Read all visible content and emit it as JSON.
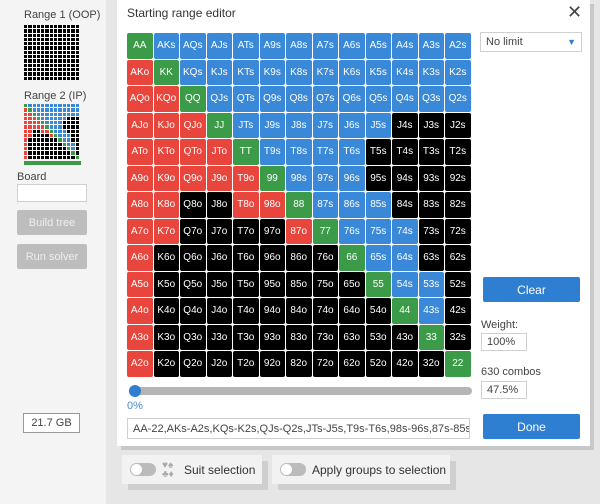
{
  "colors": {
    "g": "#3b9b48",
    "b": "#3a88d8",
    "r": "#e8463d",
    "k": "#000000"
  },
  "sidebar": {
    "range1_label": "Range 1 (OOP)",
    "range2_label": "Range 2 (IP)",
    "board_label": "Board",
    "board_value": "",
    "build_tree": "Build tree",
    "run_solver": "Run solver",
    "memory": "21.7 GB"
  },
  "dialog": {
    "title": "Starting range editor",
    "close_icon": "close-icon",
    "limit_select": "No limit",
    "clear": "Clear",
    "weight_label": "Weight:",
    "weight_value": "100%",
    "combos_label": "630 combos",
    "combos_percent": "47.5%",
    "slider_value": "0%",
    "slider_fraction": 0,
    "range_text": "AA-22,AKs-A2s,KQs-K2s,QJs-Q2s,JTs-J5s,T9s-T6s,98s-96s,87s-85s,7",
    "done": "Done"
  },
  "bottom": {
    "suit_selection": "Suit selection",
    "apply_groups": "Apply groups to selection"
  },
  "grid": {
    "states": [
      "gbbbbbbbbbbbb",
      "rgbbbbbbbbbbb",
      "rrgbbbbbbbbbb",
      "rrrgbbbbbbkkk",
      "rrrrgbbbbkkkk",
      "rrrrrgbbbkkkk",
      "rrkkrrgbbbkkk",
      "rrkkkkrgbbbkk",
      "rkkkkkkkgbbkk",
      "rkkkkkkkkgbbk",
      "rkkkkkkkkkgbk",
      "rkkkkkkkkkkgk",
      "rkkkkkkkkkkkg"
    ],
    "range1_states": [
      "kkkkkkkkkkkkk",
      "kkkkkkkkkkkkk",
      "kkkkkkkkkkkkk",
      "kkkkkkkkkkkkk",
      "kkkkkkkkkkkkk",
      "kkkkkkkkkkkkk",
      "kkkkkkkkkkkkk",
      "kkkkkkkkkkkkk",
      "kkkkkkkkkkkkk",
      "kkkkkkkkkkkkk",
      "kkkkkkkkkkkkk",
      "kkkkkkkkkkkkk",
      "kkkkkkkkkkkkk"
    ],
    "rows": [
      [
        "AA",
        "AKs",
        "AQs",
        "AJs",
        "ATs",
        "A9s",
        "A8s",
        "A7s",
        "A6s",
        "A5s",
        "A4s",
        "A3s",
        "A2s"
      ],
      [
        "AKo",
        "KK",
        "KQs",
        "KJs",
        "KTs",
        "K9s",
        "K8s",
        "K7s",
        "K6s",
        "K5s",
        "K4s",
        "K3s",
        "K2s"
      ],
      [
        "AQo",
        "KQo",
        "QQ",
        "QJs",
        "QTs",
        "Q9s",
        "Q8s",
        "Q7s",
        "Q6s",
        "Q5s",
        "Q4s",
        "Q3s",
        "Q2s"
      ],
      [
        "AJo",
        "KJo",
        "QJo",
        "JJ",
        "JTs",
        "J9s",
        "J8s",
        "J7s",
        "J6s",
        "J5s",
        "J4s",
        "J3s",
        "J2s"
      ],
      [
        "ATo",
        "KTo",
        "QTo",
        "JTo",
        "TT",
        "T9s",
        "T8s",
        "T7s",
        "T6s",
        "T5s",
        "T4s",
        "T3s",
        "T2s"
      ],
      [
        "A9o",
        "K9o",
        "Q9o",
        "J9o",
        "T9o",
        "99",
        "98s",
        "97s",
        "96s",
        "95s",
        "94s",
        "93s",
        "92s"
      ],
      [
        "A8o",
        "K8o",
        "Q8o",
        "J8o",
        "T8o",
        "98o",
        "88",
        "87s",
        "86s",
        "85s",
        "84s",
        "83s",
        "82s"
      ],
      [
        "A7o",
        "K7o",
        "Q7o",
        "J7o",
        "T7o",
        "97o",
        "87o",
        "77",
        "76s",
        "75s",
        "74s",
        "73s",
        "72s"
      ],
      [
        "A6o",
        "K6o",
        "Q6o",
        "J6o",
        "T6o",
        "96o",
        "86o",
        "76o",
        "66",
        "65s",
        "64s",
        "63s",
        "62s"
      ],
      [
        "A5o",
        "K5o",
        "Q5o",
        "J5o",
        "T5o",
        "95o",
        "85o",
        "75o",
        "65o",
        "55",
        "54s",
        "53s",
        "52s"
      ],
      [
        "A4o",
        "K4o",
        "Q4o",
        "J4o",
        "T4o",
        "94o",
        "84o",
        "74o",
        "64o",
        "54o",
        "44",
        "43s",
        "42s"
      ],
      [
        "A3o",
        "K3o",
        "Q3o",
        "J3o",
        "T3o",
        "93o",
        "83o",
        "73o",
        "63o",
        "53o",
        "43o",
        "33",
        "32s"
      ],
      [
        "A2o",
        "K2o",
        "Q2o",
        "J2o",
        "T2o",
        "92o",
        "82o",
        "72o",
        "62o",
        "52o",
        "42o",
        "32o",
        "22"
      ]
    ]
  }
}
